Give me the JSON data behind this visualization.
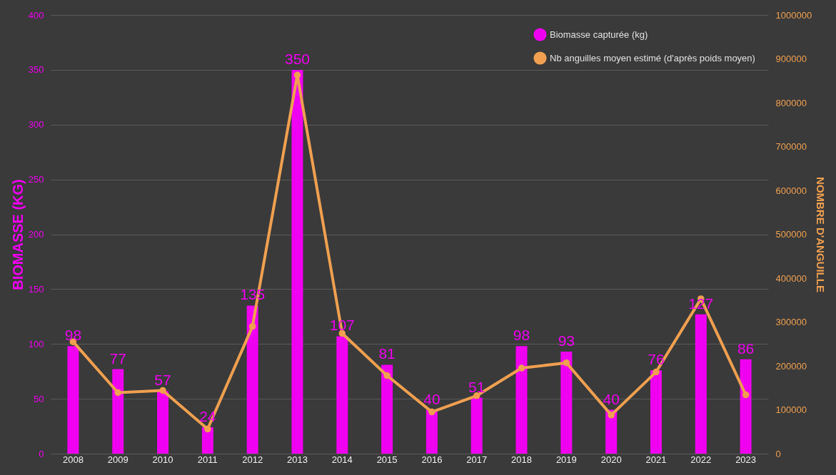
{
  "chart_data": {
    "type": "bar",
    "categories": [
      "2008",
      "2009",
      "2010",
      "2011",
      "2012",
      "2013",
      "2014",
      "2015",
      "2016",
      "2017",
      "2018",
      "2019",
      "2020",
      "2021",
      "2022",
      "2023"
    ],
    "series": [
      {
        "name": "Biomasse capturée (kg)",
        "color": "#f000f0",
        "values": [
          98,
          77,
          57,
          24,
          135,
          350,
          107,
          81,
          40,
          51,
          98,
          93,
          40,
          76,
          127,
          86
        ],
        "value_labels": [
          "98",
          "77",
          "57",
          "24",
          "135",
          "350",
          "107",
          "81",
          "40",
          "51",
          "98",
          "93",
          "40",
          "76",
          "127",
          "86"
        ]
      },
      {
        "name": "Nb anguilles moyen estimé (d'après poids moyen)",
        "type": "line",
        "axis": "y2",
        "color": "#f0a050",
        "marker": "circle",
        "values": [
          255000,
          139000,
          144000,
          56000,
          290000,
          863000,
          274000,
          178000,
          95000,
          132000,
          195000,
          207000,
          88000,
          186000,
          353000,
          134000
        ]
      }
    ],
    "ylabel": "BIOMASSE (KG)",
    "y2label": "NOMBRE D'ANGUILLE",
    "ylim": [
      0,
      400
    ],
    "yticks": [
      0,
      50,
      100,
      150,
      200,
      250,
      300,
      350,
      400
    ],
    "y2lim": [
      0,
      1000000
    ],
    "y2ticks": [
      0,
      100000,
      200000,
      300000,
      400000,
      500000,
      600000,
      700000,
      800000,
      900000,
      1000000
    ],
    "grid": "y",
    "legend": "top right"
  }
}
